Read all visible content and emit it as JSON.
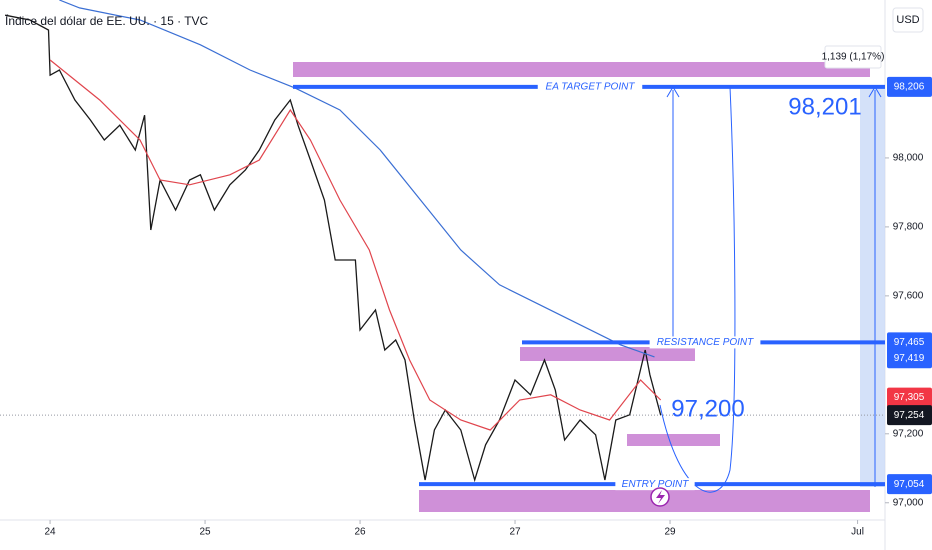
{
  "chart_data": {
    "type": "line",
    "title": "Índice del dólar de EE. UU. · 15 · TVC",
    "currency": "USD",
    "xlim": [
      -0.323,
      5.387
    ],
    "xticks": [
      {
        "value": 0,
        "label": "24"
      },
      {
        "value": 1,
        "label": "25"
      },
      {
        "value": 2,
        "label": "26"
      },
      {
        "value": 3,
        "label": "27"
      },
      {
        "value": 4,
        "label": "29"
      },
      {
        "value": 5.21,
        "label": "Jul"
      }
    ],
    "ylim": [
      96.95,
      98.458
    ],
    "yticks": [
      {
        "value": 97,
        "label": "97,000"
      },
      {
        "value": 97.2,
        "label": "97,200"
      },
      {
        "value": 97.6,
        "label": "97,600"
      },
      {
        "value": 97.8,
        "label": "97,800"
      },
      {
        "value": 98,
        "label": "98,000"
      }
    ],
    "series": [
      {
        "color": "#1a1a1a",
        "x": [
          -0.29,
          -0.13,
          -0.01,
          0,
          0.06,
          0.16,
          0.26,
          0.35,
          0.45,
          0.55,
          0.61,
          0.65,
          0.71,
          0.81,
          0.9,
          0.97,
          1.06,
          1.16,
          1.26,
          1.35,
          1.45,
          1.55,
          1.6,
          1.68,
          1.77,
          1.84,
          1.9,
          1.97,
          2,
          2.1,
          2.16,
          2.23,
          2.29,
          2.35,
          2.42,
          2.48,
          2.55,
          2.65,
          2.74,
          2.81,
          2.9,
          3,
          3.1,
          3.19,
          3.26,
          3.32,
          3.42,
          3.52,
          3.58,
          3.65,
          3.74,
          3.84,
          3.87,
          3.94
        ],
        "values": [
          98.414,
          98.4,
          98.371,
          98.24,
          98.255,
          98.168,
          98.11,
          98.052,
          98.095,
          98.023,
          98.124,
          97.791,
          97.936,
          97.849,
          97.936,
          97.951,
          97.849,
          97.922,
          97.965,
          98.023,
          98.11,
          98.168,
          98.095,
          97.994,
          97.878,
          97.704,
          97.704,
          97.704,
          97.501,
          97.559,
          97.443,
          97.472,
          97.414,
          97.24,
          97.066,
          97.211,
          97.269,
          97.211,
          97.066,
          97.168,
          97.24,
          97.356,
          97.313,
          97.414,
          97.327,
          97.182,
          97.24,
          97.197,
          97.066,
          97.24,
          97.255,
          97.443,
          97.371,
          97.254
        ]
      },
      {
        "color": "#e0454d",
        "x": [
          0,
          0.32,
          0.58,
          0.71,
          0.9,
          1.16,
          1.35,
          1.55,
          1.68,
          1.87,
          2.06,
          2.19,
          2.32,
          2.45,
          2.65,
          2.84,
          3.03,
          3.23,
          3.42,
          3.61,
          3.81,
          3.94
        ],
        "values": [
          98.284,
          98.168,
          98.052,
          97.936,
          97.922,
          97.951,
          97.994,
          98.139,
          98.052,
          97.878,
          97.733,
          97.559,
          97.414,
          97.298,
          97.24,
          97.211,
          97.298,
          97.313,
          97.269,
          97.24,
          97.356,
          97.298
        ]
      },
      {
        "color": "#3b6fd4",
        "x": [
          0.06,
          0.19,
          0.58,
          0.97,
          1.29,
          1.58,
          1.87,
          2.13,
          2.39,
          2.65,
          2.9,
          3.16,
          3.42,
          3.68,
          3.9
        ],
        "values": [
          98.458,
          98.435,
          98.4,
          98.328,
          98.255,
          98.203,
          98.139,
          98.023,
          97.878,
          97.733,
          97.632,
          97.574,
          97.516,
          97.458,
          97.423
        ]
      }
    ],
    "levels": [
      {
        "value": 98.206,
        "label": "98,206",
        "color": "#2962ff",
        "name": "EA TARGET POINT"
      },
      {
        "value": 97.465,
        "label": "97,465",
        "color": "#2962ff",
        "name": "RESISTANCE POINT"
      },
      {
        "value": 97.054,
        "label": "97,054",
        "color": "#2962ff",
        "name": "ENTRY POINT"
      }
    ],
    "price_labels": [
      {
        "value": 97.419,
        "label": "97,419",
        "color": "#2962ff"
      },
      {
        "value": 97.305,
        "label": "97,305",
        "color": "#f23645"
      },
      {
        "value": 97.254,
        "label": "97,254",
        "color": "#131722"
      }
    ],
    "annotations": {
      "target_big": "98,201",
      "mid_big": "97,200",
      "measure": "1,139 (1,17%)"
    }
  }
}
